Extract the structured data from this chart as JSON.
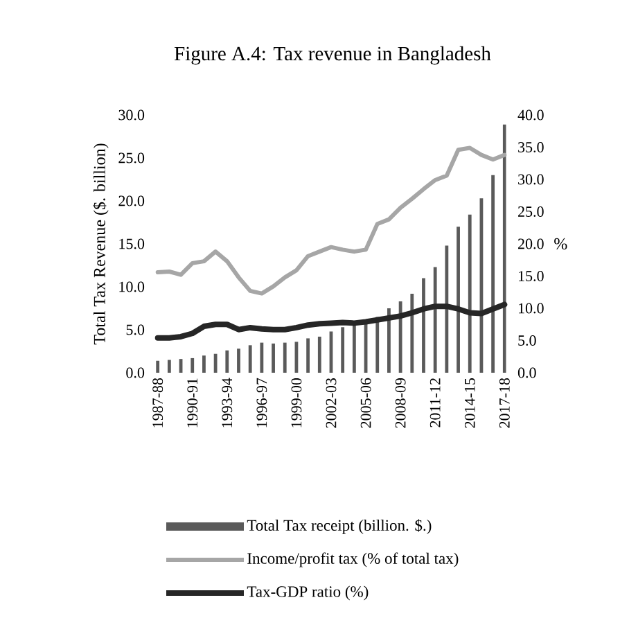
{
  "chart_data": {
    "type": "bar",
    "title": "Figure A.4: Tax revenue in Bangladesh",
    "ylabel": "Total Tax Revenue ($. billion)",
    "y2label": "%",
    "categories": [
      "1987-88",
      null,
      null,
      "1990-91",
      null,
      null,
      "1993-94",
      null,
      null,
      "1996-97",
      null,
      null,
      "1999-00",
      null,
      null,
      "2002-03",
      null,
      null,
      "2005-06",
      null,
      null,
      "2008-09",
      null,
      null,
      "2011-12",
      null,
      null,
      "2014-15",
      null,
      null,
      "2017-18"
    ],
    "series": [
      {
        "name": "Total Tax receipt (billion. $.)",
        "color": "#5a5a5a",
        "values": [
          1.4,
          1.5,
          1.6,
          1.7,
          2.0,
          2.2,
          2.6,
          2.8,
          3.2,
          3.5,
          3.4,
          3.5,
          3.6,
          4.0,
          4.2,
          4.8,
          5.3,
          5.7,
          6.0,
          6.5,
          7.5,
          8.3,
          9.2,
          11.0,
          12.3,
          14.8,
          17.0,
          18.4,
          20.3,
          23.0,
          28.9
        ]
      },
      {
        "name": "Income/profit tax (% of total tax)",
        "type": "line",
        "axis": "y2",
        "color": "#a6a6a6",
        "values": [
          15.6,
          15.7,
          15.2,
          17.0,
          17.3,
          18.8,
          17.3,
          14.8,
          12.7,
          12.3,
          13.4,
          14.8,
          15.9,
          18.1,
          18.8,
          19.5,
          19.1,
          18.8,
          19.1,
          23.1,
          23.8,
          25.6,
          27.0,
          28.5,
          29.9,
          30.6,
          34.6,
          34.9,
          33.8,
          33.1,
          33.8
        ]
      },
      {
        "name": "Tax-GDP ratio (%)",
        "type": "line",
        "axis": "y2",
        "color": "#262626",
        "values": [
          5.4,
          5.4,
          5.6,
          6.1,
          7.2,
          7.5,
          7.5,
          6.7,
          7.0,
          6.8,
          6.7,
          6.7,
          7.0,
          7.4,
          7.6,
          7.7,
          7.8,
          7.7,
          7.9,
          8.2,
          8.5,
          8.8,
          9.3,
          9.9,
          10.3,
          10.3,
          9.9,
          9.3,
          9.2,
          9.9,
          10.6
        ]
      }
    ],
    "ylim": [
      0,
      30
    ],
    "yticks": [
      {
        "value": 0,
        "label": "0.0"
      },
      {
        "value": 5,
        "label": "5.0"
      },
      {
        "value": 10,
        "label": "10.0"
      },
      {
        "value": 15,
        "label": "15.0"
      },
      {
        "value": 20,
        "label": "20.0"
      },
      {
        "value": 25,
        "label": "25.0"
      },
      {
        "value": 30,
        "label": "30.0"
      }
    ],
    "y2lim": [
      0,
      40
    ],
    "y2ticks": [
      {
        "value": 0,
        "label": "0.0"
      },
      {
        "value": 5,
        "label": "5.0"
      },
      {
        "value": 10,
        "label": "10.0"
      },
      {
        "value": 15,
        "label": "15.0"
      },
      {
        "value": 20,
        "label": "20.0"
      },
      {
        "value": 25,
        "label": "25.0"
      },
      {
        "value": 30,
        "label": "30.0"
      },
      {
        "value": 35,
        "label": "35.0"
      },
      {
        "value": 40,
        "label": "40.0"
      }
    ],
    "grid": false,
    "legend": "bottom",
    "marker": "none",
    "line_style": "solid"
  }
}
